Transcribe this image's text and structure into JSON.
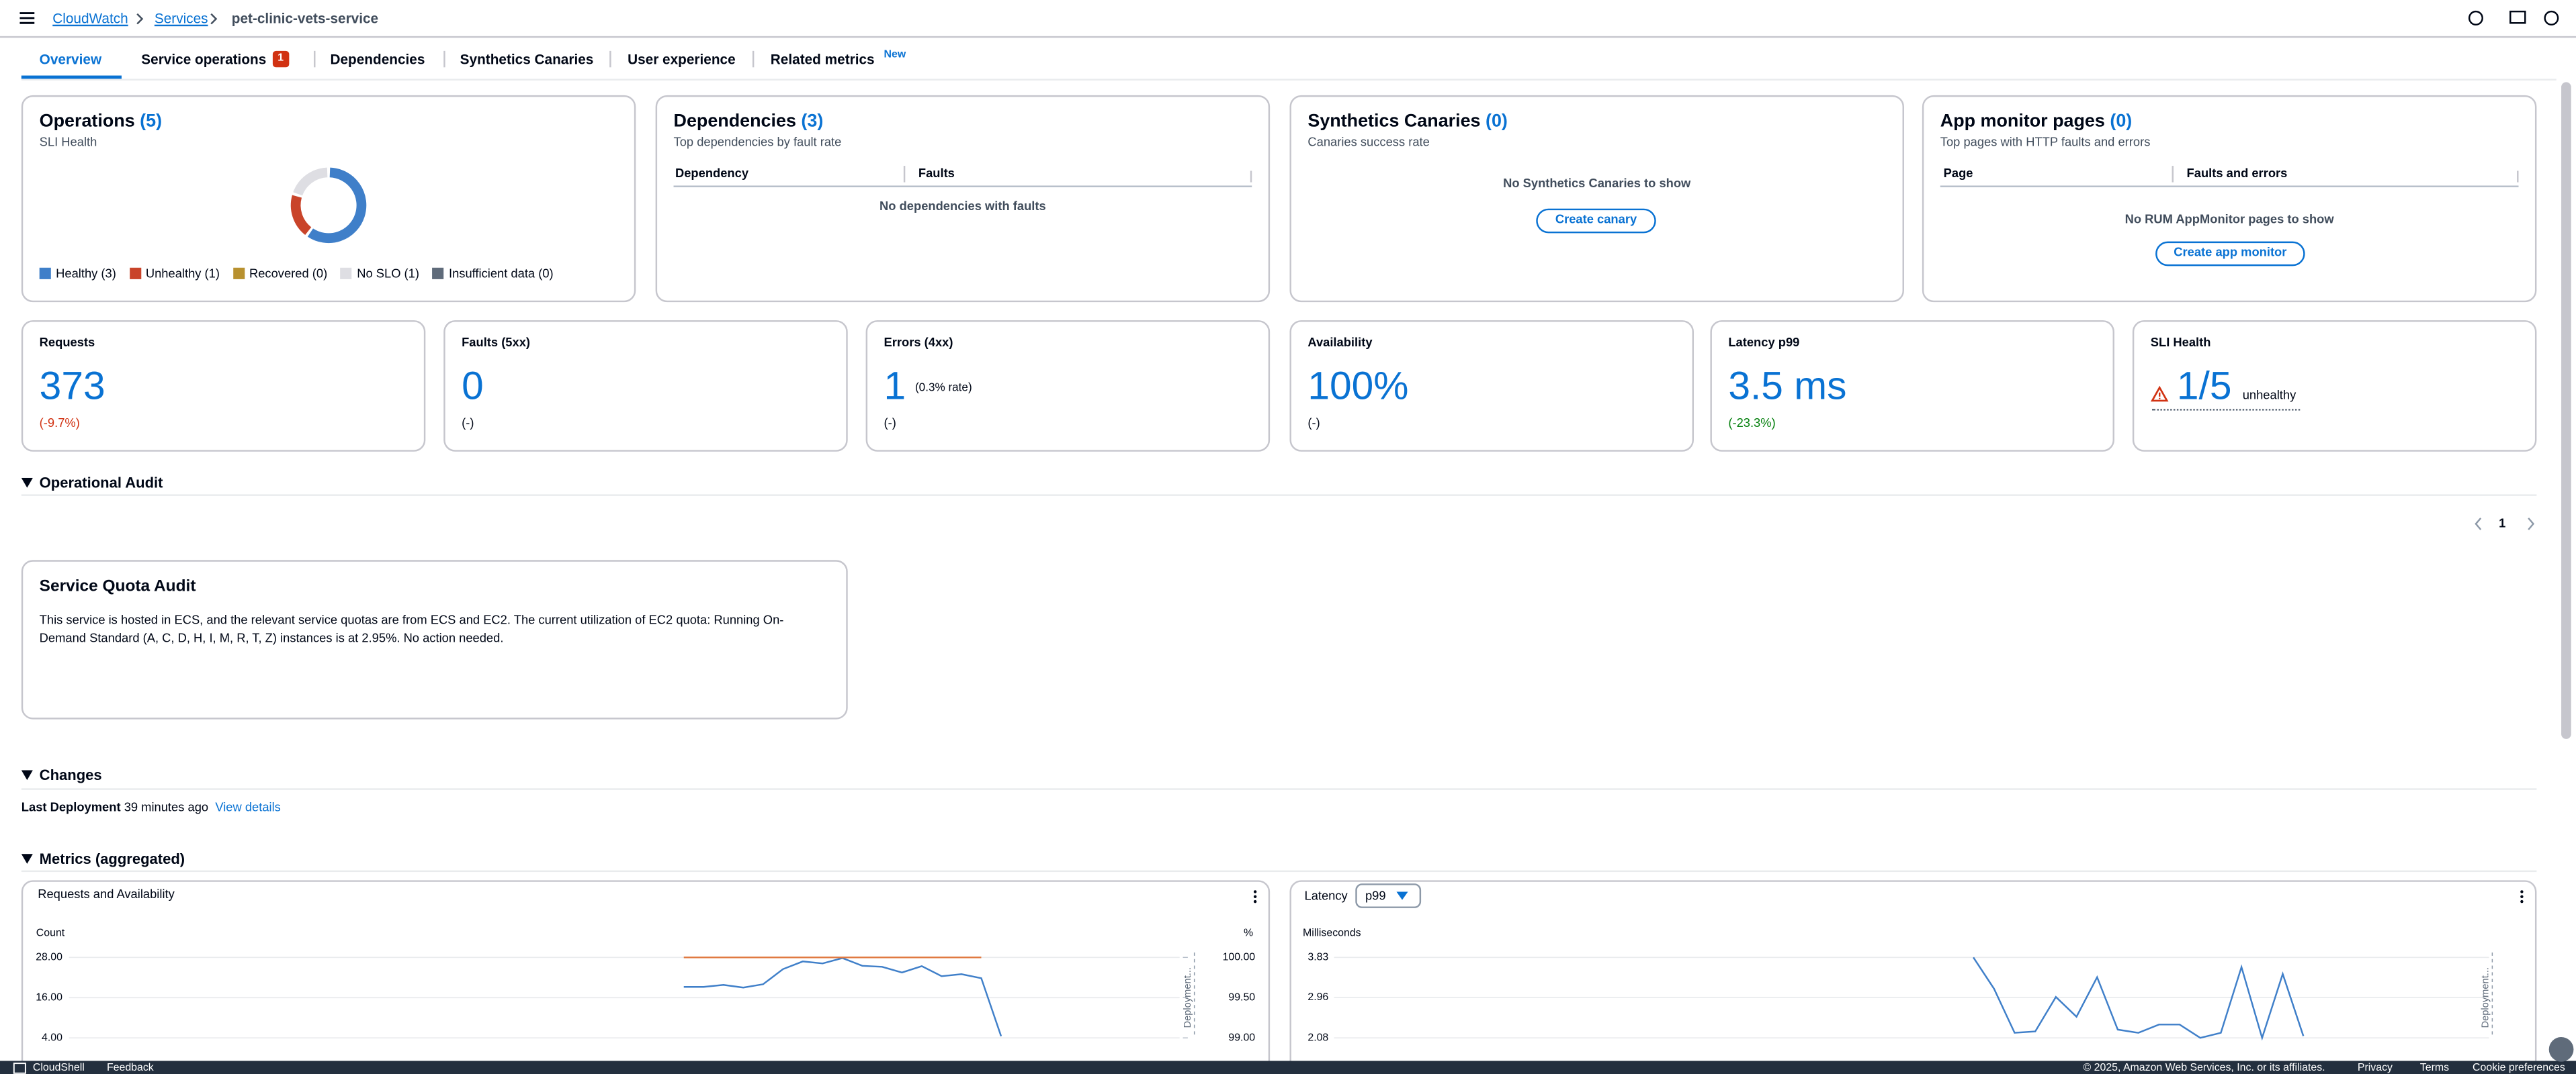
{
  "header": {
    "breadcrumbs": [
      "CloudWatch",
      "Services",
      "pet-clinic-vets-service"
    ]
  },
  "tabs": [
    {
      "label": "Overview"
    },
    {
      "label": "Service operations",
      "badge": "1"
    },
    {
      "label": "Dependencies"
    },
    {
      "label": "Synthetics Canaries"
    },
    {
      "label": "User experience"
    },
    {
      "label": "Related metrics",
      "badge": "New"
    }
  ],
  "summary_cards": [
    {
      "title": "Operations",
      "count": "(5)",
      "subtitle": "SLI Health",
      "donut": [
        {
          "label": "Healthy (3)",
          "value": 3,
          "color": "#3f7fc9"
        },
        {
          "label": "Unhealthy (1)",
          "value": 1,
          "color": "#c9442a"
        },
        {
          "label": "Recovered (0)",
          "value": 0,
          "color": "#b8912f"
        },
        {
          "label": "No SLO (1)",
          "value": 1,
          "color": "#dedee3"
        },
        {
          "label": "Insufficient data (0)",
          "value": 0,
          "color": "#5f6b7a"
        }
      ]
    },
    {
      "title": "Dependencies",
      "count": "(3)",
      "subtitle": "Top dependencies by fault rate",
      "columns": [
        "Dependency",
        "Faults"
      ],
      "empty": "No dependencies with faults"
    },
    {
      "title": "Synthetics Canaries",
      "count": "(0)",
      "subtitle": "Canaries success rate",
      "empty": "No Synthetics Canaries to show",
      "button": "Create canary"
    },
    {
      "title": "App monitor pages",
      "count": "(0)",
      "subtitle": "Top pages with HTTP faults and errors",
      "columns": [
        "Page",
        "Faults and errors"
      ],
      "empty": "No RUM AppMonitor pages to show",
      "button": "Create app monitor"
    }
  ],
  "metrics": [
    {
      "label": "Requests",
      "value": 373,
      "change": "(-9.7%)",
      "change_color": "#d13212"
    },
    {
      "label": "Faults (5xx)",
      "value": 0,
      "change": "(-)"
    },
    {
      "label": "Errors (4xx)",
      "value": 1,
      "note": "(0.3% rate)",
      "change": "(-)"
    },
    {
      "label": "Availability",
      "value": "100%",
      "change": "(-)"
    },
    {
      "label": "Latency p99",
      "value": "3.5 ms",
      "change": "(-23.3%)",
      "change_color": "#037f0c"
    },
    {
      "label": "SLI Health",
      "value": "1/5",
      "suffix": "unhealthy"
    }
  ],
  "operational_audit": {
    "heading": "Operational Audit",
    "page": 1,
    "card": {
      "title": "Service Quota Audit",
      "text": "This service is hosted in ECS, and the relevant service quotas are from ECS and EC2. The current utilization of EC2 quota: Running On-Demand Standard (A, C, D, H, I, M, R, T, Z) instances is at 2.95%. No action needed."
    }
  },
  "changes": {
    "heading": "Changes",
    "label": "Last Deployment",
    "time": "39 minutes ago",
    "link": "View details"
  },
  "metrics_aggregated": {
    "heading": "Metrics (aggregated)",
    "charts": [
      {
        "type": "line",
        "title": "Requests and Availability",
        "y_label": "Count",
        "y2_label": "%",
        "annotation": "Deployment...",
        "ylim": [
          4,
          28
        ],
        "yticks": [
          {
            "value": 28,
            "label": "28.00"
          },
          {
            "value": 16,
            "label": "16.00"
          },
          {
            "value": 4,
            "label": "4.00"
          }
        ],
        "y2lim": [
          99,
          100
        ],
        "y2ticks": [
          {
            "value": 100,
            "label": "100.00"
          },
          {
            "value": 99.5,
            "label": "99.50"
          },
          {
            "value": 99,
            "label": "99.00"
          }
        ],
        "series": [
          {
            "color": "#3f7fc9",
            "values": [
              null,
              null,
              null,
              null,
              null,
              null,
              null,
              null,
              null,
              null,
              null,
              null,
              null,
              null,
              null,
              null,
              null,
              null,
              null,
              null,
              null,
              null,
              null,
              null,
              null,
              null,
              null,
              null,
              null,
              null,
              null,
              19.2,
              19.2,
              19.8,
              19.0,
              20.0,
              24.5,
              26.8,
              26.2,
              27.8,
              25.5,
              25.2,
              23.5,
              25.4,
              22.4,
              23.0,
              21.8,
              4.5,
              null,
              null,
              null,
              null,
              null,
              null,
              null,
              null,
              null
            ]
          },
          {
            "color": "#e07941",
            "axis": "y2",
            "values": [
              null,
              null,
              null,
              null,
              null,
              null,
              null,
              null,
              null,
              null,
              null,
              null,
              null,
              null,
              null,
              null,
              null,
              null,
              null,
              null,
              null,
              null,
              null,
              null,
              null,
              null,
              null,
              null,
              null,
              null,
              null,
              100,
              100,
              100,
              100,
              100,
              100,
              100,
              100,
              100,
              100,
              100,
              100,
              100,
              100,
              100,
              100,
              null,
              null,
              null,
              null,
              null,
              null,
              null,
              null,
              null,
              null
            ]
          }
        ]
      },
      {
        "type": "line",
        "title": "Latency",
        "statistic": "p99",
        "y_label": "Milliseconds",
        "annotation": "Deployment...",
        "ylim": [
          2.08,
          3.83
        ],
        "yticks": [
          3.83,
          2.96,
          2.08
        ],
        "series": [
          {
            "color": "#3f7fc9",
            "values": [
              null,
              null,
              null,
              null,
              null,
              null,
              null,
              null,
              null,
              null,
              null,
              null,
              null,
              null,
              null,
              null,
              null,
              null,
              null,
              null,
              null,
              null,
              null,
              null,
              null,
              null,
              null,
              null,
              null,
              null,
              null,
              3.83,
              3.15,
              2.19,
              2.22,
              2.97,
              2.54,
              3.4,
              2.26,
              2.19,
              2.37,
              2.37,
              2.08,
              2.19,
              3.62,
              2.08,
              3.47,
              2.12,
              null,
              null,
              null,
              null,
              null,
              null,
              null,
              null,
              null
            ]
          }
        ]
      }
    ]
  },
  "footer": {
    "left": [
      "CloudShell",
      "Feedback"
    ],
    "copyright": "© 2025, Amazon Web Services, Inc. or its affiliates.",
    "links": [
      "Privacy",
      "Terms",
      "Cookie preferences"
    ]
  }
}
